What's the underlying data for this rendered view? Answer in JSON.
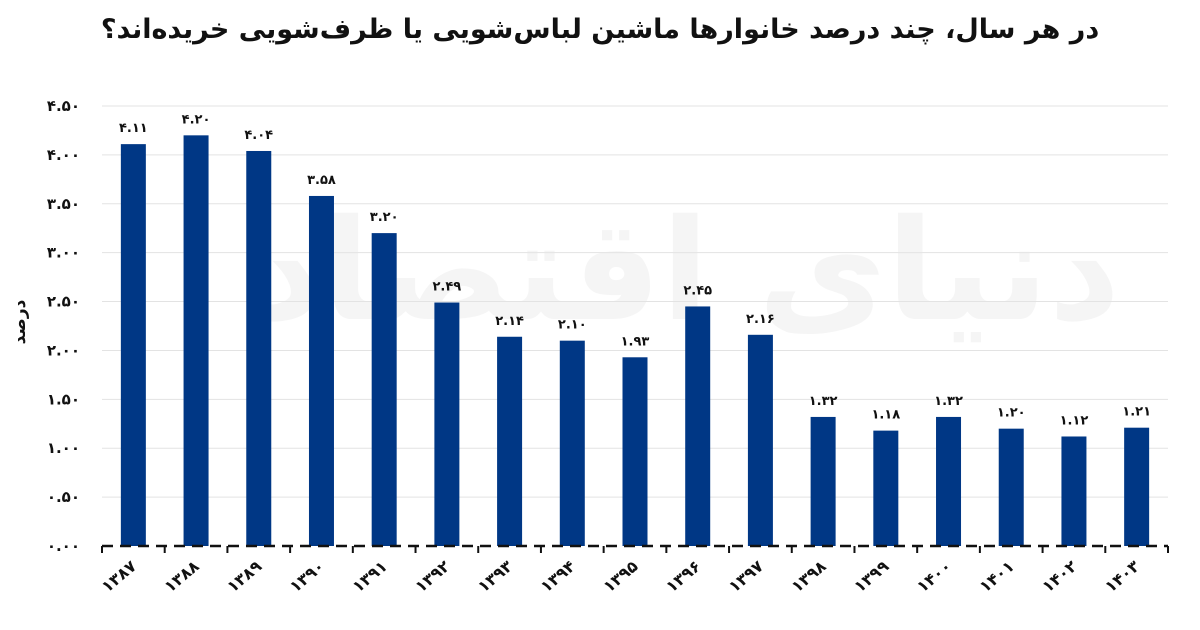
{
  "chart_data": {
    "type": "bar",
    "title": "در هر سال، چند درصد خانوارها ماشین لباس‌شویی یا ظرف‌شویی خریده‌اند؟",
    "ylabel": "درصد",
    "xlabel": "",
    "categories": [
      "۱۳۸۷",
      "۱۳۸۸",
      "۱۳۸۹",
      "۱۳۹۰",
      "۱۳۹۱",
      "۱۳۹۲",
      "۱۳۹۳",
      "۱۳۹۴",
      "۱۳۹۵",
      "۱۳۹۶",
      "۱۳۹۷",
      "۱۳۹۸",
      "۱۳۹۹",
      "۱۴۰۰",
      "۱۴۰۱",
      "۱۴۰۲",
      "۱۴۰۳"
    ],
    "values": [
      4.11,
      4.2,
      4.04,
      3.58,
      3.2,
      2.49,
      2.14,
      2.1,
      1.93,
      2.45,
      2.16,
      1.32,
      1.18,
      1.32,
      1.2,
      1.12,
      1.21
    ],
    "value_labels": [
      "۴.۱۱",
      "۴.۲۰",
      "۴.۰۴",
      "۳.۵۸",
      "۳.۲۰",
      "۲.۴۹",
      "۲.۱۴",
      "۲.۱۰",
      "۱.۹۳",
      "۲.۴۵",
      "۲.۱۶",
      "۱.۳۲",
      "۱.۱۸",
      "۱.۳۲",
      "۱.۲۰",
      "۱.۱۲",
      "۱.۲۱"
    ],
    "yticks": [
      0,
      0.5,
      1,
      1.5,
      2,
      2.5,
      3,
      3.5,
      4,
      4.5
    ],
    "ytick_labels": [
      "۰.۰۰",
      "۰.۵۰",
      "۱.۰۰",
      "۱.۵۰",
      "۲.۰۰",
      "۲.۵۰",
      "۳.۰۰",
      "۳.۵۰",
      "۴.۰۰",
      "۴.۵۰"
    ],
    "ylim": [
      0,
      4.5
    ],
    "grid": true,
    "legend": "none",
    "colors": {
      "bar": "#003785",
      "grid": "#e3e3e3",
      "text": "#111111"
    }
  },
  "watermark": "دنیای اقتصاد"
}
